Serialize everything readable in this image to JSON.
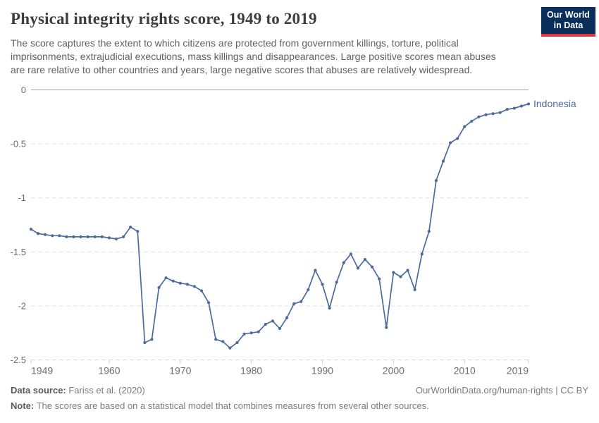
{
  "header": {
    "title": "Physical integrity rights score, 1949 to 2019",
    "subtitle_lines": [
      "The score captures the extent to which citizens are protected from government killings, torture, political",
      "imprisonments, extrajudicial executions, mass killings and disappearances. Large positive scores mean abuses",
      "are rare relative to other countries and years, large negative scores that abuses are relatively widespread."
    ],
    "logo": {
      "line1": "Our World",
      "line2": "in Data",
      "navy": "#0a2e5a",
      "red": "#e0373e"
    }
  },
  "chart_data": {
    "type": "line",
    "title": "Physical integrity rights score, 1949 to 2019",
    "xlabel": "",
    "ylabel": "",
    "ylim": [
      -2.5,
      0
    ],
    "xlim": [
      1949,
      2019
    ],
    "yticks": [
      0,
      -0.5,
      -1,
      -1.5,
      -2,
      -2.5
    ],
    "xticks": [
      1949,
      1960,
      1970,
      1980,
      1990,
      2000,
      2010,
      2019
    ],
    "grid": "horizontal-dashed",
    "legend_position": "end-of-line-label",
    "line_color": "#4c6a9c",
    "x": [
      1949,
      1950,
      1951,
      1952,
      1953,
      1954,
      1955,
      1956,
      1957,
      1958,
      1959,
      1960,
      1961,
      1962,
      1963,
      1964,
      1965,
      1966,
      1967,
      1968,
      1969,
      1970,
      1971,
      1972,
      1973,
      1974,
      1975,
      1976,
      1977,
      1978,
      1979,
      1980,
      1981,
      1982,
      1983,
      1984,
      1985,
      1986,
      1987,
      1988,
      1989,
      1990,
      1991,
      1992,
      1993,
      1994,
      1995,
      1996,
      1997,
      1998,
      1999,
      2000,
      2001,
      2002,
      2003,
      2004,
      2005,
      2006,
      2007,
      2008,
      2009,
      2010,
      2011,
      2012,
      2013,
      2014,
      2015,
      2016,
      2017,
      2018,
      2019
    ],
    "series": [
      {
        "name": "Indonesia",
        "values": [
          -1.29,
          -1.33,
          -1.34,
          -1.35,
          -1.35,
          -1.36,
          -1.36,
          -1.36,
          -1.36,
          -1.36,
          -1.36,
          -1.37,
          -1.38,
          -1.36,
          -1.27,
          -1.31,
          -2.34,
          -2.31,
          -1.83,
          -1.74,
          -1.77,
          -1.79,
          -1.8,
          -1.82,
          -1.86,
          -1.97,
          -2.31,
          -2.33,
          -2.39,
          -2.34,
          -2.26,
          -2.25,
          -2.24,
          -2.17,
          -2.14,
          -2.21,
          -2.11,
          -1.98,
          -1.96,
          -1.85,
          -1.67,
          -1.8,
          -2.02,
          -1.78,
          -1.6,
          -1.52,
          -1.65,
          -1.57,
          -1.64,
          -1.75,
          -2.2,
          -1.69,
          -1.73,
          -1.67,
          -1.85,
          -1.52,
          -1.31,
          -0.84,
          -0.66,
          -0.49,
          -0.45,
          -0.34,
          -0.29,
          -0.25,
          -0.23,
          -0.22,
          -0.21,
          -0.18,
          -0.17,
          -0.15,
          -0.13
        ]
      }
    ]
  },
  "footer": {
    "source_label": "Data source:",
    "source_value": " Fariss et al. (2020)",
    "rights": "OurWorldinData.org/human-rights | CC BY",
    "note_label": "Note:",
    "note_value": " The scores are based on a statistical model that combines measures from several other sources."
  }
}
